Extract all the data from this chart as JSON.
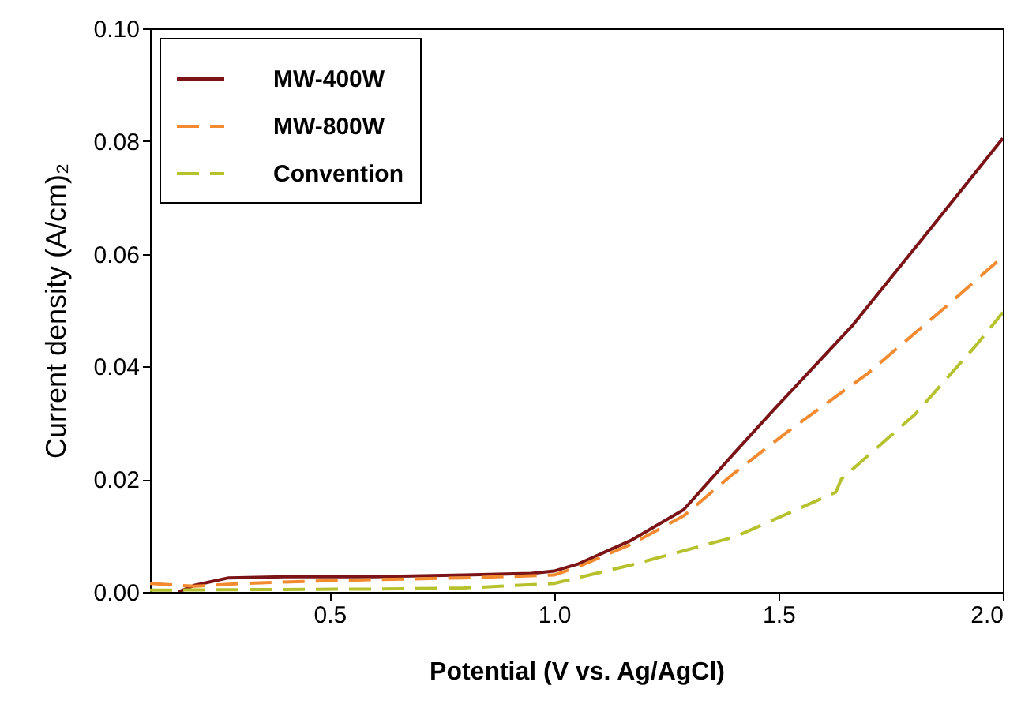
{
  "chart_data": {
    "type": "line",
    "xlabel": "Potential (V vs. Ag/AgCl)",
    "ylabel": "Current density (A/cm)₂",
    "xlim": [
      0.1,
      2.0
    ],
    "ylim": [
      0,
      0.1
    ],
    "xticks": [
      0.5,
      {
        "value": 1.0,
        "label": "1.0"
      },
      1.5,
      {
        "value": 2.0,
        "label": "2.0"
      }
    ],
    "yticks": [
      {
        "value": 0,
        "label": "0.00"
      },
      {
        "value": 0.02,
        "label": "0.02"
      },
      {
        "value": 0.04,
        "label": "0.04"
      },
      {
        "value": 0.06,
        "label": "0.06"
      },
      {
        "value": 0.08,
        "label": "0.08"
      },
      {
        "value": 0.1,
        "label": "0.10"
      }
    ],
    "grid": false,
    "legend": "top left",
    "series": [
      {
        "name": "MW-400W",
        "color": "#7b1416",
        "line_style": "solid",
        "x": [
          0.163,
          0.2,
          0.275,
          0.4,
          0.6,
          0.8,
          0.95,
          1.0,
          1.055,
          1.173,
          1.289,
          1.4,
          1.488,
          1.663,
          1.824,
          2.0
        ],
        "values": [
          0,
          0.0012,
          0.0025,
          0.0027,
          0.0027,
          0.003,
          0.0033,
          0.0037,
          0.005,
          0.0092,
          0.0146,
          0.0245,
          0.0322,
          0.0471,
          0.063,
          0.0805
        ]
      },
      {
        "name": "MW-800W",
        "color": "#f28a30",
        "line_style": "dashed",
        "x": [
          0.1,
          0.2,
          0.3,
          0.5,
          0.8,
          1.0,
          1.055,
          1.173,
          1.289,
          1.4,
          1.523,
          1.698,
          1.883,
          2.0
        ],
        "values": [
          0.0015,
          0.001,
          0.0015,
          0.002,
          0.0025,
          0.003,
          0.0045,
          0.0085,
          0.0135,
          0.021,
          0.0286,
          0.0387,
          0.0513,
          0.0595
        ]
      },
      {
        "name": "Convention",
        "color": "#b5c22e",
        "line_style": "dashed",
        "x": [
          0.1,
          0.3,
          0.6,
          0.8,
          1.0,
          1.173,
          1.404,
          1.628,
          1.64,
          1.803,
          1.943,
          2.0
        ],
        "values": [
          0.0003,
          0.0004,
          0.0005,
          0.0007,
          0.0015,
          0.0048,
          0.0098,
          0.0177,
          0.02,
          0.0314,
          0.044,
          0.0496
        ]
      }
    ]
  }
}
